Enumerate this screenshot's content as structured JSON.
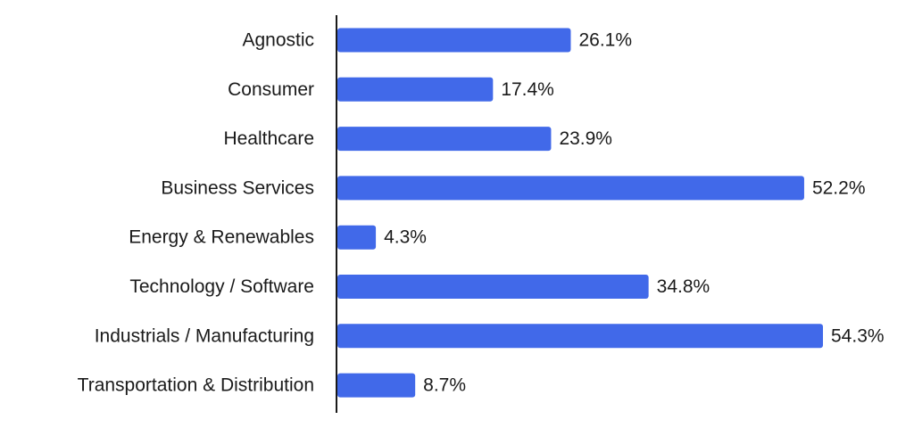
{
  "chart_data": {
    "type": "bar",
    "orientation": "horizontal",
    "categories": [
      "Agnostic",
      "Consumer",
      "Healthcare",
      "Business Services",
      "Energy & Renewables",
      "Technology / Software",
      "Industrials / Manufacturing",
      "Transportation & Distribution"
    ],
    "values": [
      26.1,
      17.4,
      23.9,
      52.2,
      4.3,
      34.8,
      54.3,
      8.7
    ],
    "value_labels": [
      "26.1%",
      "17.4%",
      "23.9%",
      "52.2%",
      "4.3%",
      "34.8%",
      "54.3%",
      "8.7%"
    ],
    "value_unit": "%",
    "xlim": [
      0,
      55
    ],
    "title": "",
    "xlabel": "",
    "ylabel": "",
    "grid": false,
    "legend": "none",
    "colors": {
      "bar": "#4169e9",
      "axis": "#1a1a1a",
      "text": "#1a1a1a"
    }
  }
}
